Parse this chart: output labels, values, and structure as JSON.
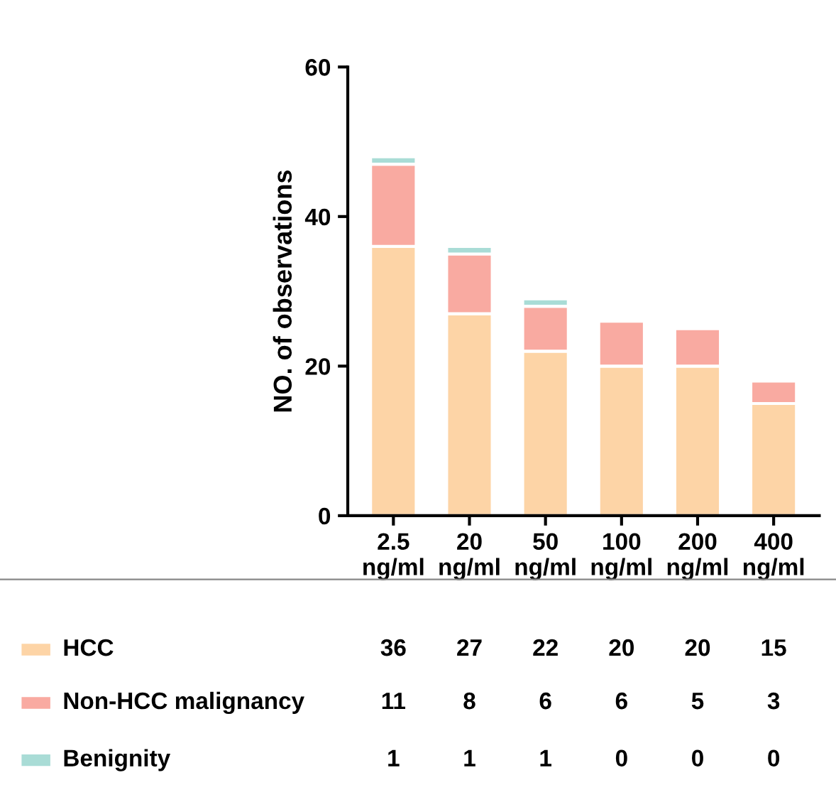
{
  "chart_data": {
    "type": "bar",
    "stacked": true,
    "ylabel": "NO. of observations",
    "categories": [
      "2.5\nng/ml",
      "20\nng/ml",
      "50\nng/ml",
      "100\nng/ml",
      "200\nng/ml",
      "400\nng/ml"
    ],
    "series": [
      {
        "name": "HCC",
        "color": "#fdd4a6",
        "values": [
          36,
          27,
          22,
          20,
          20,
          15
        ]
      },
      {
        "name": "Non-HCC malignancy",
        "color": "#f9aaa1",
        "values": [
          11,
          8,
          6,
          6,
          5,
          3
        ]
      },
      {
        "name": "Benignity",
        "color": "#a9dcd6",
        "values": [
          1,
          1,
          1,
          0,
          0,
          0
        ]
      }
    ],
    "ylim": [
      0,
      60
    ],
    "yticks": [
      0,
      20,
      40,
      60
    ],
    "grid": false,
    "legend": "bottom",
    "data_labels": true
  }
}
